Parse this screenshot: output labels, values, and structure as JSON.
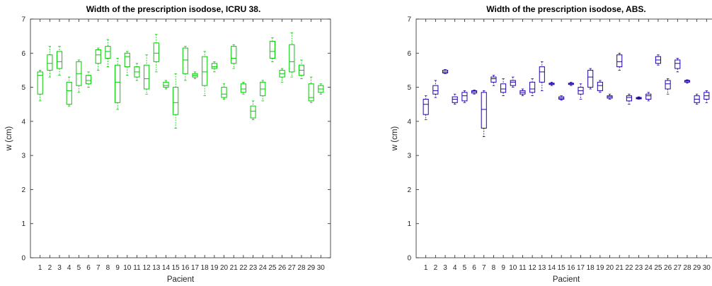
{
  "chart_data": [
    {
      "type": "box",
      "title": "Width of the prescription isodose, ICRU 38.",
      "xlabel": "Pacient",
      "ylabel": "w (cm)",
      "ylim": [
        0,
        7
      ],
      "yticks": [
        0,
        1,
        2,
        3,
        4,
        5,
        6,
        7
      ],
      "categories": [
        "1",
        "2",
        "3",
        "4",
        "5",
        "6",
        "7",
        "8",
        "9",
        "10",
        "11",
        "12",
        "13",
        "14",
        "15",
        "16",
        "17",
        "18",
        "19",
        "20",
        "21",
        "22",
        "23",
        "24",
        "25",
        "26",
        "27",
        "28",
        "29",
        "30"
      ],
      "color": "#00cc00",
      "series": [
        {
          "values": [
            [
              4.6,
              4.8,
              5.35,
              5.45,
              5.5
            ],
            [
              5.3,
              5.5,
              5.7,
              5.95,
              6.2
            ],
            [
              5.35,
              5.55,
              5.75,
              6.05,
              6.2
            ],
            [
              4.45,
              4.5,
              4.9,
              5.15,
              5.3
            ],
            [
              4.85,
              5.05,
              5.4,
              5.75,
              5.8
            ],
            [
              5.0,
              5.1,
              5.2,
              5.35,
              5.45
            ],
            [
              5.5,
              5.7,
              5.95,
              6.1,
              6.15
            ],
            [
              5.6,
              5.85,
              6.05,
              6.2,
              6.4
            ],
            [
              4.35,
              4.55,
              5.15,
              5.65,
              5.85
            ],
            [
              5.35,
              5.6,
              5.9,
              6.0,
              6.05
            ],
            [
              5.2,
              5.3,
              5.45,
              5.6,
              5.7
            ],
            [
              4.8,
              4.95,
              5.25,
              5.65,
              5.95
            ],
            [
              5.45,
              5.75,
              6.0,
              6.3,
              6.55
            ],
            [
              4.95,
              5.0,
              5.05,
              5.15,
              5.2
            ],
            [
              3.8,
              4.2,
              4.55,
              5.0,
              5.4
            ],
            [
              5.2,
              5.4,
              5.8,
              6.15,
              6.2
            ],
            [
              5.25,
              5.3,
              5.35,
              5.4,
              5.45
            ],
            [
              4.75,
              5.05,
              5.45,
              5.9,
              6.05
            ],
            [
              5.45,
              5.55,
              5.6,
              5.7,
              5.75
            ],
            [
              4.65,
              4.7,
              4.8,
              5.0,
              5.1
            ],
            [
              5.55,
              5.7,
              5.85,
              6.2,
              6.25
            ],
            [
              4.8,
              4.85,
              4.95,
              5.1,
              5.15
            ],
            [
              4.05,
              4.1,
              4.3,
              4.45,
              4.6
            ],
            [
              4.6,
              4.75,
              4.95,
              5.15,
              5.2
            ],
            [
              5.75,
              5.85,
              6.05,
              6.35,
              6.45
            ],
            [
              5.15,
              5.3,
              5.4,
              5.5,
              5.55
            ],
            [
              5.3,
              5.45,
              5.75,
              6.25,
              6.6
            ],
            [
              5.25,
              5.35,
              5.5,
              5.65,
              5.8
            ],
            [
              4.55,
              4.6,
              4.7,
              5.1,
              5.3
            ],
            [
              4.8,
              4.85,
              4.95,
              5.05,
              5.1
            ]
          ]
        }
      ]
    },
    {
      "type": "box",
      "title": "Width of the prescription isodose, ABS.",
      "xlabel": "Pacient",
      "ylabel": "w (cm)",
      "ylim": [
        0,
        7
      ],
      "yticks": [
        0,
        1,
        2,
        3,
        4,
        5,
        6,
        7
      ],
      "categories": [
        "1",
        "2",
        "3",
        "4",
        "5",
        "6",
        "7",
        "8",
        "9",
        "10",
        "11",
        "12",
        "13",
        "14",
        "15",
        "16",
        "17",
        "18",
        "19",
        "20",
        "21",
        "22",
        "23",
        "24",
        "25",
        "26",
        "27",
        "28",
        "29",
        "30"
      ],
      "color": "#2200aa",
      "series": [
        {
          "values": [
            [
              4.05,
              4.2,
              4.5,
              4.65,
              4.75
            ],
            [
              4.7,
              4.8,
              4.9,
              5.05,
              5.2
            ],
            [
              5.4,
              5.42,
              5.45,
              5.5,
              5.52
            ],
            [
              4.5,
              4.55,
              4.65,
              4.72,
              4.8
            ],
            [
              4.55,
              4.6,
              4.75,
              4.85,
              4.9
            ],
            [
              4.8,
              4.83,
              4.87,
              4.9,
              4.92
            ],
            [
              3.55,
              3.8,
              4.35,
              4.85,
              4.9
            ],
            [
              5.05,
              5.15,
              5.25,
              5.3,
              5.35
            ],
            [
              4.75,
              4.85,
              4.95,
              5.1,
              5.25
            ],
            [
              5.0,
              5.05,
              5.15,
              5.2,
              5.3
            ],
            [
              4.75,
              4.8,
              4.85,
              4.9,
              4.95
            ],
            [
              4.75,
              4.85,
              4.95,
              5.15,
              5.25
            ],
            [
              4.9,
              5.15,
              5.45,
              5.6,
              5.75
            ],
            [
              5.05,
              5.08,
              5.1,
              5.12,
              5.15
            ],
            [
              4.62,
              4.65,
              4.68,
              4.72,
              4.75
            ],
            [
              5.05,
              5.08,
              5.1,
              5.12,
              5.15
            ],
            [
              4.65,
              4.8,
              4.9,
              5.0,
              5.1
            ],
            [
              4.95,
              5.0,
              5.3,
              5.5,
              5.55
            ],
            [
              4.85,
              4.9,
              5.05,
              5.15,
              5.2
            ],
            [
              4.65,
              4.68,
              4.72,
              4.75,
              4.8
            ],
            [
              5.5,
              5.6,
              5.75,
              5.95,
              6.0
            ],
            [
              4.5,
              4.6,
              4.7,
              4.75,
              4.8
            ],
            [
              4.65,
              4.66,
              4.68,
              4.7,
              4.72
            ],
            [
              4.6,
              4.65,
              4.75,
              4.8,
              4.85
            ],
            [
              5.65,
              5.7,
              5.8,
              5.9,
              5.95
            ],
            [
              4.8,
              4.95,
              5.1,
              5.2,
              5.25
            ],
            [
              5.45,
              5.55,
              5.7,
              5.8,
              5.85
            ],
            [
              5.12,
              5.15,
              5.18,
              5.2,
              5.22
            ],
            [
              4.5,
              4.55,
              4.65,
              4.75,
              4.8
            ],
            [
              4.55,
              4.65,
              4.75,
              4.85,
              4.9
            ]
          ]
        }
      ]
    }
  ]
}
